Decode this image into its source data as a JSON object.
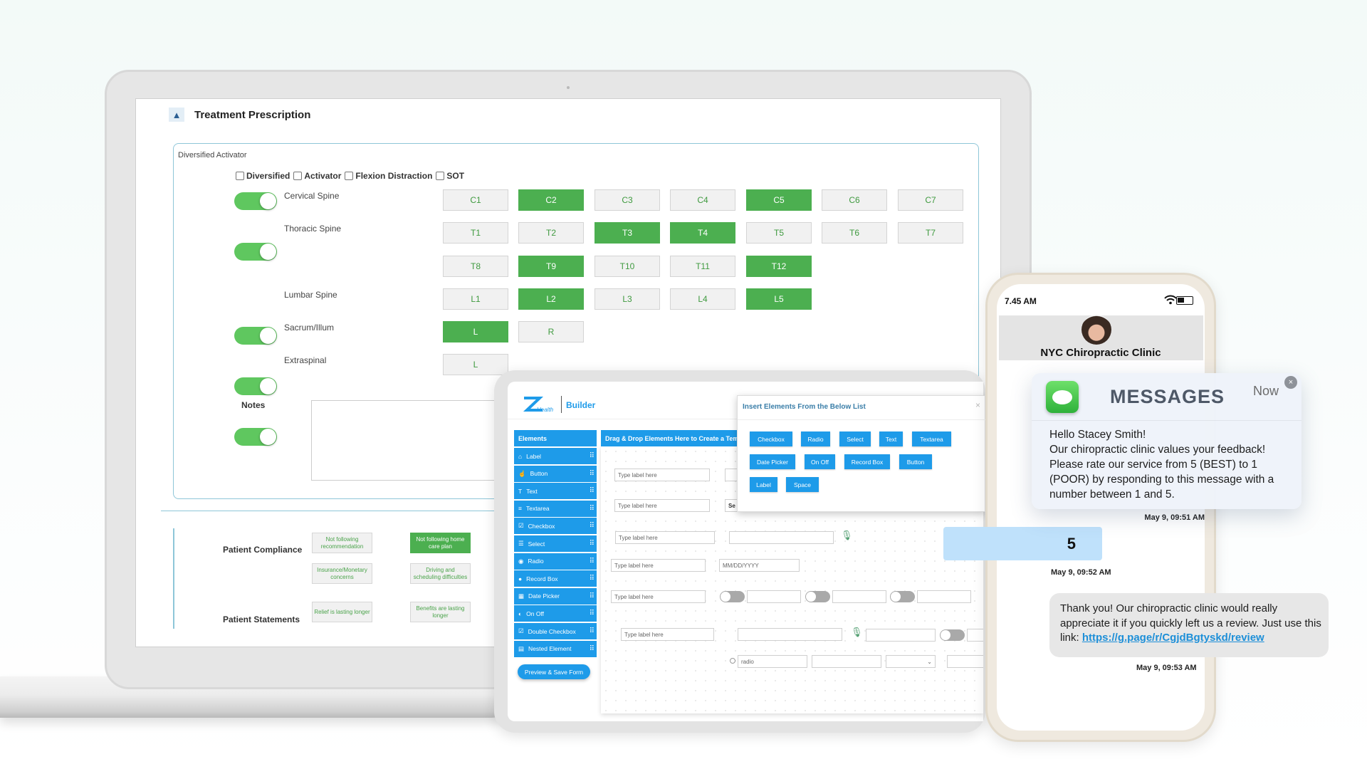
{
  "laptop": {
    "section_title": "Treatment Prescription",
    "panel_title": "Diversified Activator",
    "techniques": [
      {
        "label": "Diversified",
        "checked": false
      },
      {
        "label": "Activator",
        "checked": false
      },
      {
        "label": "Flexion Distraction",
        "checked": false
      },
      {
        "label": "SOT",
        "checked": false
      }
    ],
    "spine_sections": [
      {
        "label": "Cervical Spine",
        "enabled": true,
        "rows": [
          [
            {
              "l": "C1",
              "on": false
            },
            {
              "l": "C2",
              "on": true
            },
            {
              "l": "C3",
              "on": false
            },
            {
              "l": "C4",
              "on": false
            },
            {
              "l": "C5",
              "on": true
            },
            {
              "l": "C6",
              "on": false
            },
            {
              "l": "C7",
              "on": false
            }
          ]
        ]
      },
      {
        "label": "Thoracic Spine",
        "enabled": true,
        "rows": [
          [
            {
              "l": "T1",
              "on": false
            },
            {
              "l": "T2",
              "on": false
            },
            {
              "l": "T3",
              "on": true
            },
            {
              "l": "T4",
              "on": true
            },
            {
              "l": "T5",
              "on": false
            },
            {
              "l": "T6",
              "on": false
            },
            {
              "l": "T7",
              "on": false
            }
          ],
          [
            {
              "l": "T8",
              "on": false
            },
            {
              "l": "T9",
              "on": true
            },
            {
              "l": "T10",
              "on": false
            },
            {
              "l": "T11",
              "on": false
            },
            {
              "l": "T12",
              "on": true
            }
          ]
        ]
      },
      {
        "label": "Lumbar Spine",
        "enabled": true,
        "rows": [
          [
            {
              "l": "L1",
              "on": false
            },
            {
              "l": "L2",
              "on": true
            },
            {
              "l": "L3",
              "on": false
            },
            {
              "l": "L4",
              "on": false
            },
            {
              "l": "L5",
              "on": true
            }
          ]
        ]
      },
      {
        "label": "Sacrum/Illum",
        "enabled": true,
        "rows": [
          [
            {
              "l": "L",
              "on": true
            },
            {
              "l": "R",
              "on": false
            }
          ]
        ]
      },
      {
        "label": "Extraspinal",
        "enabled": true,
        "rows": [
          [
            {
              "l": "L",
              "on": false
            }
          ]
        ]
      }
    ],
    "notes_label": "Notes",
    "patient_compliance": {
      "label": "Patient Compliance",
      "options": [
        {
          "label": "Not following recommendation",
          "on": false
        },
        {
          "label": "Not following home care plan",
          "on": true
        },
        {
          "label": "Insurance/Monetary concerns",
          "on": false
        },
        {
          "label": "Driving and scheduling difficulties",
          "on": false
        }
      ]
    },
    "patient_statements": {
      "label": "Patient Statements",
      "options": [
        {
          "label": "Relief is lasting longer",
          "on": false
        },
        {
          "label": "Benefits are lasting longer",
          "on": false
        }
      ]
    }
  },
  "builder": {
    "logo_text": "Health",
    "title": "Builder",
    "elements_header": "Elements",
    "elements": [
      {
        "label": "Label",
        "icon": "tag-icon"
      },
      {
        "label": "Button",
        "icon": "pointer-icon"
      },
      {
        "label": "Text",
        "icon": "text-icon"
      },
      {
        "label": "Textarea",
        "icon": "textarea-icon"
      },
      {
        "label": "Checkbox",
        "icon": "checkbox-icon"
      },
      {
        "label": "Select",
        "icon": "select-icon"
      },
      {
        "label": "Radio",
        "icon": "radio-icon"
      },
      {
        "label": "Record Box",
        "icon": "record-icon"
      },
      {
        "label": "Date Picker",
        "icon": "calendar-icon"
      },
      {
        "label": "On Off",
        "icon": "toggle-icon"
      },
      {
        "label": "Double Checkbox",
        "icon": "double-checkbox-icon"
      },
      {
        "label": "Nested Element",
        "icon": "nested-icon"
      }
    ],
    "preview_button": "Preview & Save Form",
    "dropzone_header": "Drag & Drop Elements Here to Create a Tem",
    "label_placeholder": "Type label here",
    "select_partial": "Se",
    "date_placeholder": "MM/DD/YYYY",
    "radio_placeholder": "radio",
    "modal": {
      "title": "Insert Elements From the Below List",
      "close": "×",
      "buttons": [
        "Checkbox",
        "Radio",
        "Select",
        "Text",
        "Textarea",
        "Date Picker",
        "On Off",
        "Record Box",
        "Button",
        "Label",
        "Space"
      ]
    }
  },
  "phone": {
    "time": "7.45 AM",
    "contact": "NYC Chiropractic Clinic",
    "notification": {
      "app": "MESSAGES",
      "when": "Now",
      "lines": [
        "Hello Stacey Smith!",
        "Our chiropractic clinic values your feedback!",
        "Please rate our service from 5 (BEST) to 1",
        "(POOR) by responding to this message with a",
        "number between 1 and 5."
      ]
    },
    "ts1": "May 9,  09:51 AM",
    "reply": "5",
    "ts2": "May 9,  09:52 AM",
    "thanks_text": "Thank you! Our chiropractic clinic would really appreciate it if you quickly left us a review. Just use this link: ",
    "review_link": "https://g.page/r/CgjdBgtyskd/review",
    "ts3": "May 9,  09:53 AM"
  },
  "colors": {
    "green": "#4caf50",
    "blue": "#1e9be9",
    "reply_bubble": "#bfe1fb",
    "link": "#1d8fd8"
  }
}
